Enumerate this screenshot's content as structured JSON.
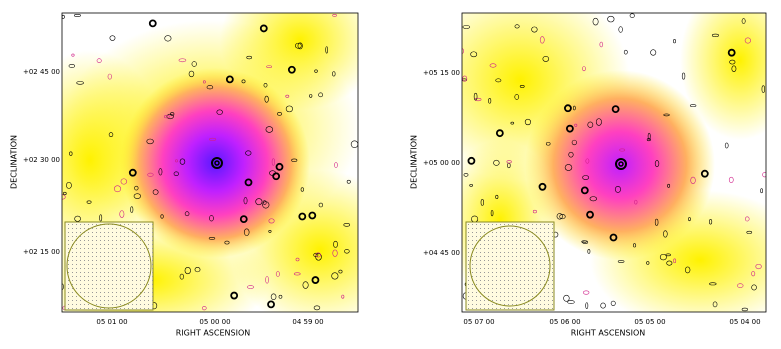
{
  "panels": [
    {
      "xlabel": "RIGHT ASCENSION",
      "ylabel": "DECLINATION",
      "xticks": [
        "05 01 00",
        "05 00 00",
        "04 59 00"
      ],
      "yticks": [
        "+02 45 00",
        "+02 30 00",
        "+02 15 00"
      ]
    },
    {
      "xlabel": "RIGHT ASCENSION",
      "ylabel": "DECLINATION",
      "xticks": [
        "05 07 00",
        "05 06 00",
        "05 05 00",
        "05 04 00"
      ],
      "yticks": [
        "+05 15 00",
        "+05 00 00",
        "+04 45 00"
      ]
    }
  ]
}
